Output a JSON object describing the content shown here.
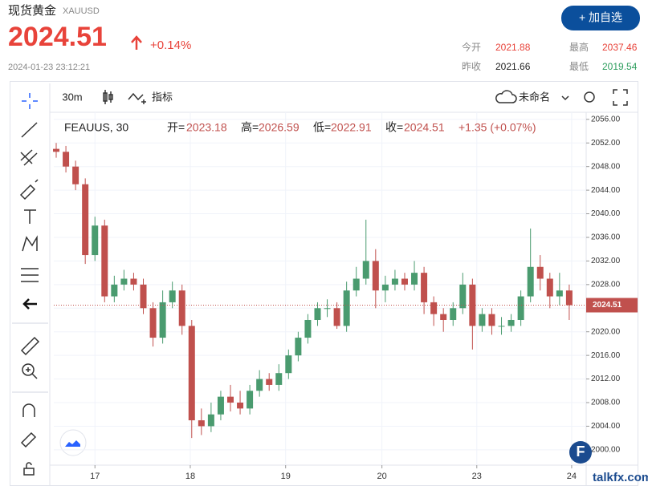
{
  "header": {
    "title": "现货黄金",
    "symbol": "XAUUSD",
    "price": "2024.51",
    "change": "+0.14%",
    "timestamp": "2024-01-23 23:12:21",
    "stats": [
      {
        "label": "今开",
        "value": "2021.88"
      },
      {
        "label": "最高",
        "value": "2037.46"
      },
      {
        "label": "昨收",
        "value": "2021.66"
      },
      {
        "label": "最低",
        "value": "2019.54"
      }
    ],
    "button": "+ 加自选"
  },
  "toolbar": {
    "interval": "30m",
    "indicators": "指标",
    "layout": "未命名"
  },
  "watermark": "talkfx.com",
  "chart_data": {
    "type": "candlestick",
    "legend": [
      "FEAUUS, 30",
      "开=",
      "2023.18",
      "高=",
      "2026.59",
      "低=",
      "2022.91",
      "收=",
      "2024.51",
      "+1.35 (+0.07%)"
    ],
    "up_color": "#4a9b6f",
    "down_color": "#c0504d",
    "grid": true,
    "last_price": 2024.51,
    "xlim": [
      0,
      110
    ],
    "xticks": [
      {
        "value": 8.5,
        "label": "17"
      },
      {
        "value": 28.2,
        "label": "18"
      },
      {
        "value": 47.9,
        "label": "19"
      },
      {
        "value": 67.8,
        "label": "20"
      },
      {
        "value": 87.4,
        "label": "23"
      },
      {
        "value": 107,
        "label": "24"
      }
    ],
    "ylim": [
      1997.4,
      2057.2
    ],
    "yticks": [
      {
        "value": 2000,
        "label": "2000.00"
      },
      {
        "value": 2004,
        "label": "2004.00"
      },
      {
        "value": 2008,
        "label": "2008.00"
      },
      {
        "value": 2012,
        "label": "2012.00"
      },
      {
        "value": 2016,
        "label": "2016.00"
      },
      {
        "value": 2020,
        "label": "2020.00"
      },
      {
        "value": 2024,
        "label": "2024.00"
      },
      {
        "value": 2028,
        "label": "2028.00"
      },
      {
        "value": 2032,
        "label": "2032.00"
      },
      {
        "value": 2036,
        "label": "2036.00"
      },
      {
        "value": 2040,
        "label": "2040.00"
      },
      {
        "value": 2044,
        "label": "2044.00"
      },
      {
        "value": 2048,
        "label": "2048.00"
      },
      {
        "value": 2052,
        "label": "2052.00"
      },
      {
        "value": 2056,
        "label": "2056.00"
      }
    ],
    "x": [
      0.5,
      2.5,
      4.5,
      6.5,
      8.5,
      10.5,
      12.5,
      14.5,
      16.5,
      18.5,
      20.5,
      22.5,
      24.5,
      26.5,
      28.5,
      30.5,
      32.5,
      34.5,
      36.5,
      38.5,
      40.5,
      42.5,
      44.5,
      46.5,
      48.5,
      50.5,
      52.5,
      54.5,
      56.5,
      58.5,
      60.5,
      62.5,
      64.5,
      66.5,
      68.5,
      70.5,
      72.5,
      74.5,
      76.5,
      78.5,
      80.5,
      82.5,
      84.5,
      86.5,
      88.5,
      90.5,
      92.5,
      94.5,
      96.5,
      98.5,
      100.5,
      102.5,
      104.5,
      106.5
    ],
    "open": [
      2051,
      2050.5,
      2048,
      2045,
      2033,
      2038,
      2026,
      2028,
      2029,
      2028,
      2024,
      2019,
      2025,
      2027,
      2021,
      2005,
      2004,
      2006,
      2009,
      2008,
      2007,
      2010,
      2012,
      2011,
      2013,
      2016,
      2019,
      2022,
      2024,
      2024,
      2021,
      2027,
      2029,
      2032,
      2027,
      2028,
      2029,
      2028,
      2030,
      2025,
      2023,
      2022,
      2024,
      2028,
      2021,
      2023,
      2021,
      2021,
      2022,
      2026,
      2031,
      2029,
      2026,
      2027
    ],
    "high": [
      2052,
      2051.5,
      2049,
      2046,
      2039.5,
      2039,
      2029.5,
      2030.5,
      2030,
      2029,
      2025,
      2027,
      2028.5,
      2028,
      2022,
      2007,
      2008,
      2010,
      2011,
      2010,
      2011,
      2013.5,
      2013,
      2014.5,
      2017,
      2020,
      2023,
      2025,
      2025.5,
      2025,
      2028.5,
      2031,
      2039,
      2034,
      2029.5,
      2030.5,
      2030,
      2032,
      2031,
      2026,
      2024,
      2025,
      2030,
      2029,
      2024,
      2024,
      2022.5,
      2023,
      2027,
      2037.5,
      2033,
      2030,
      2030,
      2028
    ],
    "low": [
      2049.5,
      2047,
      2044,
      2031.5,
      2032,
      2025,
      2025,
      2027,
      2027,
      2023,
      2017.5,
      2018,
      2024,
      2019.5,
      2002,
      2002.5,
      2003,
      2005,
      2006.5,
      2006,
      2006,
      2009,
      2010,
      2010,
      2012,
      2015,
      2018,
      2021,
      2022.5,
      2020.5,
      2020,
      2026,
      2028,
      2024,
      2025,
      2027,
      2027,
      2027,
      2023,
      2021,
      2020,
      2021,
      2023,
      2017,
      2020,
      2019.5,
      2019.5,
      2020,
      2021,
      2025,
      2027,
      2024,
      2024.5,
      2022
    ],
    "close": [
      2050.5,
      2048,
      2045,
      2033,
      2038,
      2026,
      2028,
      2029,
      2028,
      2024,
      2019,
      2025,
      2027,
      2021,
      2005,
      2004,
      2006,
      2009,
      2008,
      2007,
      2010,
      2012,
      2011,
      2013,
      2016,
      2019,
      2022,
      2024,
      2024,
      2021,
      2027,
      2029,
      2032,
      2027,
      2028,
      2029,
      2028,
      2030,
      2025,
      2023,
      2022,
      2024,
      2028,
      2021,
      2023,
      2021,
      2021,
      2022,
      2026,
      2031,
      2029,
      2026,
      2027,
      2024.51
    ]
  }
}
